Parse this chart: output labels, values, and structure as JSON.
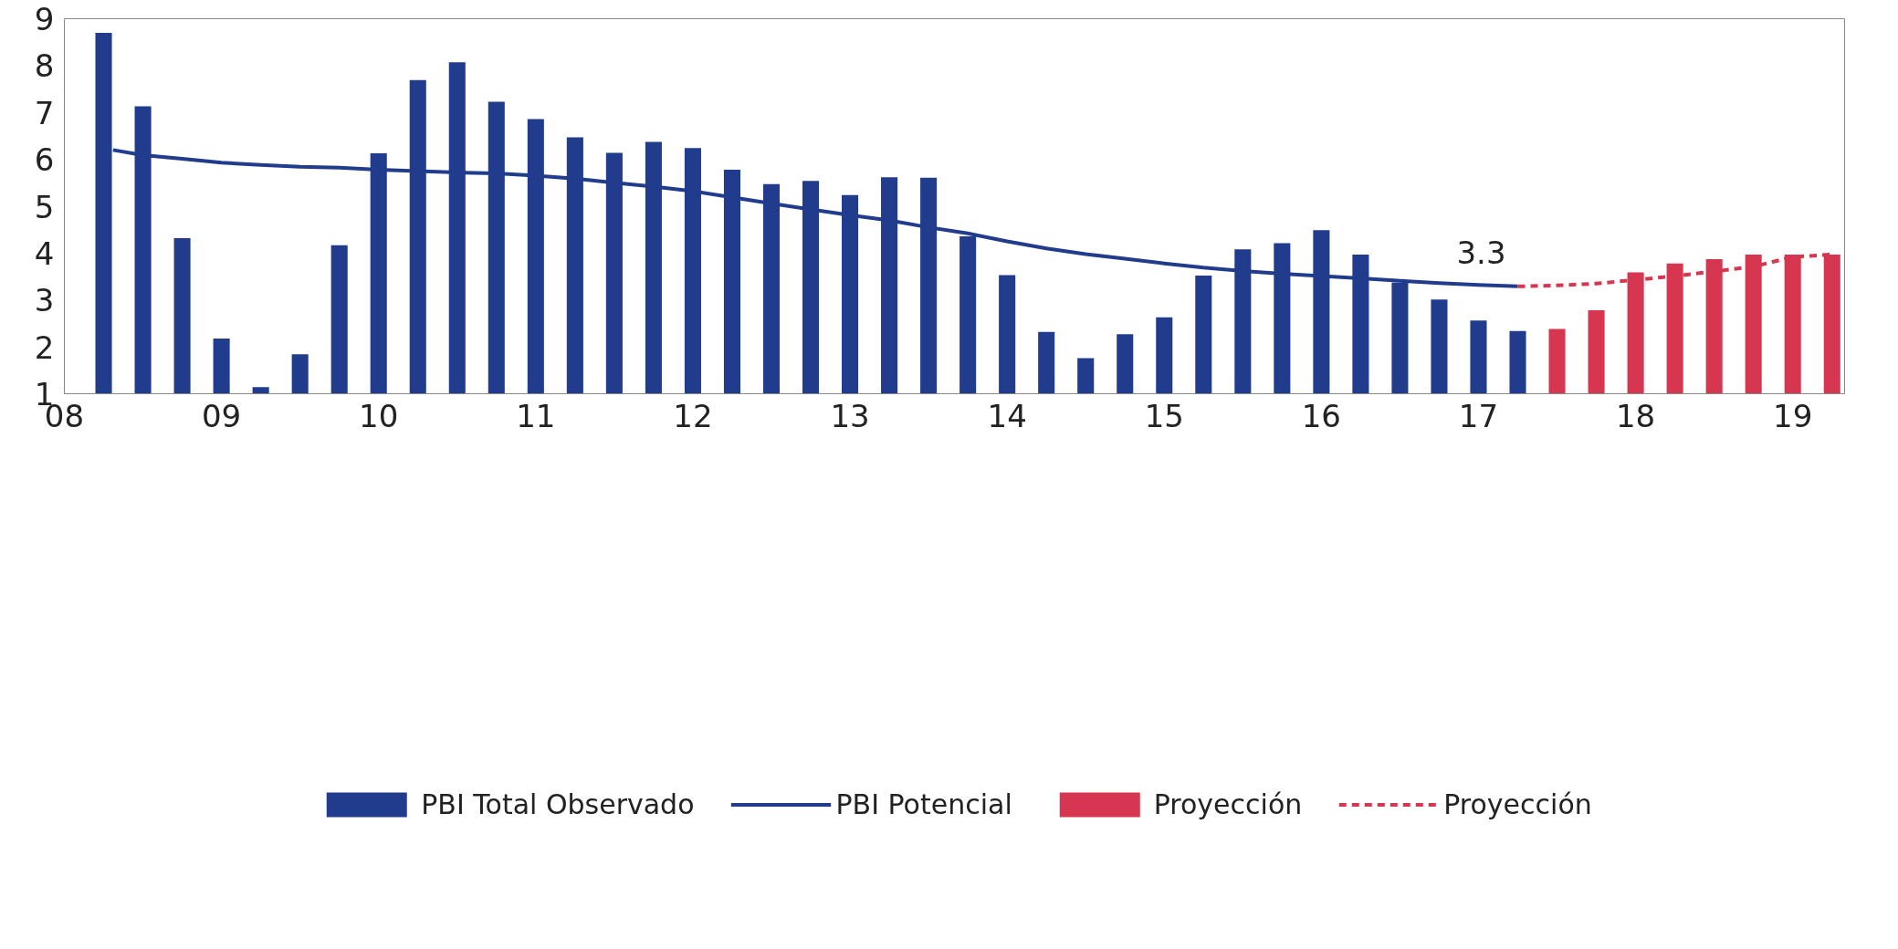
{
  "chart_data": {
    "type": "bar",
    "series": [
      {
        "name": "PBI Total Observado",
        "color": "#213c8c",
        "x": [
          8.25,
          8.5,
          8.75,
          9,
          9.25,
          9.5,
          9.75,
          10,
          10.25,
          10.5,
          10.75,
          11,
          11.25,
          11.5,
          11.75,
          12,
          12.25,
          12.5,
          12.75,
          13,
          13.25,
          13.5,
          13.75,
          14,
          14.25,
          14.5,
          14.75,
          15,
          15.25,
          15.5,
          15.75,
          16,
          16.25,
          16.5,
          16.75,
          17,
          17.25
        ],
        "values": [
          8.7,
          7.13,
          4.32,
          2.18,
          1.14,
          1.84,
          4.17,
          6.13,
          7.69,
          8.07,
          7.23,
          6.86,
          6.47,
          6.14,
          6.37,
          6.24,
          5.78,
          5.47,
          5.54,
          5.24,
          5.62,
          5.61,
          4.36,
          3.53,
          2.32,
          1.76,
          2.27,
          2.63,
          3.52,
          4.08,
          4.21,
          4.49,
          3.97,
          3.37,
          3.01,
          2.56,
          2.34
        ]
      },
      {
        "name": "PBI Potencial",
        "type": "line",
        "line_style": "solid",
        "color": "#213c8c",
        "x": [
          8.31,
          8.5,
          8.75,
          9,
          9.25,
          9.5,
          9.75,
          10,
          10.25,
          10.5,
          10.75,
          11,
          11.25,
          11.5,
          11.75,
          12,
          12.25,
          12.5,
          12.75,
          13,
          13.25,
          13.5,
          13.75,
          14,
          14.25,
          14.5,
          14.75,
          15,
          15.25,
          15.5,
          15.75,
          16,
          16.25,
          16.5,
          16.75,
          17,
          17.25
        ],
        "values": [
          6.2,
          6.09,
          6.01,
          5.93,
          5.88,
          5.84,
          5.82,
          5.78,
          5.75,
          5.72,
          5.7,
          5.65,
          5.59,
          5.5,
          5.42,
          5.32,
          5.19,
          5.06,
          4.93,
          4.81,
          4.7,
          4.55,
          4.42,
          4.25,
          4.1,
          3.98,
          3.88,
          3.78,
          3.69,
          3.62,
          3.56,
          3.51,
          3.46,
          3.41,
          3.36,
          3.32,
          3.29
        ]
      },
      {
        "name": "Proyección",
        "color": "#d6364f",
        "x": [
          17.5,
          17.75,
          18,
          18.25,
          18.5,
          18.75,
          19,
          19.25
        ],
        "values": [
          2.38,
          2.78,
          3.59,
          3.78,
          3.87,
          3.97,
          3.97,
          3.97
        ]
      },
      {
        "name": "Proyección",
        "type": "line",
        "line_style": "dashed",
        "color": "#d6364f",
        "x": [
          17.25,
          17.5,
          17.75,
          18,
          18.25,
          18.5,
          18.75,
          19,
          19.25
        ],
        "values": [
          3.29,
          3.31,
          3.35,
          3.43,
          3.51,
          3.61,
          3.71,
          3.92,
          3.97
        ]
      }
    ],
    "xlim": [
      8.0,
      19.33
    ],
    "xticks": [
      {
        "value": 8,
        "label": "08"
      },
      {
        "value": 9,
        "label": "09"
      },
      10,
      11,
      12,
      13,
      14,
      15,
      16,
      17,
      18,
      19
    ],
    "ylim": [
      1,
      9
    ],
    "yticks": [
      1,
      2,
      3,
      4,
      5,
      6,
      7,
      8,
      9
    ],
    "grid": false,
    "legend": "bottom",
    "annotations": [
      {
        "text": "3.3",
        "x": 17.25,
        "y": 3.29
      }
    ]
  }
}
